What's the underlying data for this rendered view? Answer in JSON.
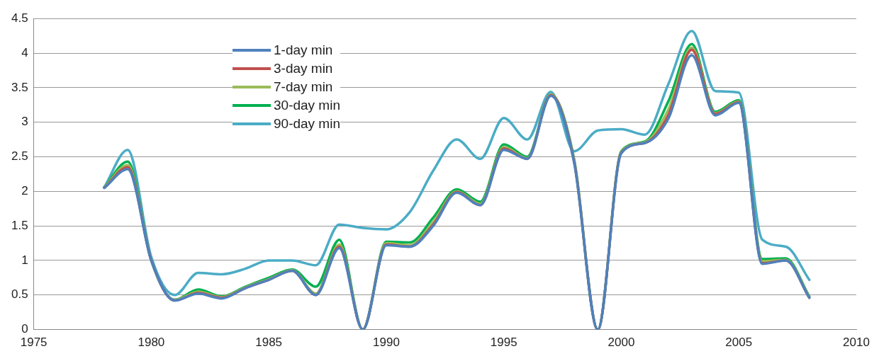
{
  "chart_data": {
    "type": "line",
    "x": [
      1978,
      1979,
      1980,
      1981,
      1982,
      1983,
      1984,
      1985,
      1986,
      1987,
      1988,
      1989,
      1990,
      1991,
      1992,
      1993,
      1994,
      1995,
      1996,
      1997,
      1998,
      1999,
      2000,
      2001,
      2002,
      2003,
      2004,
      2005,
      2006,
      2007,
      2008
    ],
    "series": [
      {
        "name": "1-day min",
        "color": "#4f81bd",
        "values": [
          2.05,
          2.32,
          1.0,
          0.42,
          0.52,
          0.45,
          0.6,
          0.72,
          0.85,
          0.5,
          1.18,
          0,
          1.22,
          1.2,
          1.5,
          1.98,
          1.8,
          2.6,
          2.47,
          3.38,
          2.4,
          0,
          2.55,
          2.7,
          3.05,
          3.97,
          3.1,
          3.28,
          0.95,
          1.0,
          0.46
        ]
      },
      {
        "name": "3-day min",
        "color": "#c0504d",
        "values": [
          2.05,
          2.35,
          1.0,
          0.42,
          0.53,
          0.46,
          0.6,
          0.72,
          0.85,
          0.5,
          1.2,
          0,
          1.23,
          1.2,
          1.52,
          1.99,
          1.8,
          2.62,
          2.47,
          3.39,
          2.42,
          0,
          2.56,
          2.7,
          3.1,
          4.05,
          3.12,
          3.29,
          0.96,
          1.0,
          0.46
        ]
      },
      {
        "name": "7-day min",
        "color": "#9bbb59",
        "values": [
          2.06,
          2.38,
          1.0,
          0.43,
          0.55,
          0.47,
          0.61,
          0.73,
          0.86,
          0.52,
          1.23,
          0,
          1.25,
          1.22,
          1.56,
          2.0,
          1.82,
          2.64,
          2.48,
          3.4,
          2.43,
          0,
          2.57,
          2.71,
          3.18,
          4.08,
          3.13,
          3.3,
          0.99,
          1.01,
          0.47
        ]
      },
      {
        "name": "30-day min",
        "color": "#00b050",
        "values": [
          2.06,
          2.43,
          1.0,
          0.43,
          0.58,
          0.48,
          0.62,
          0.75,
          0.87,
          0.62,
          1.3,
          0,
          1.27,
          1.26,
          1.62,
          2.03,
          1.85,
          2.68,
          2.5,
          3.4,
          2.45,
          0,
          2.58,
          2.72,
          3.3,
          4.13,
          3.15,
          3.32,
          1.02,
          1.03,
          0.48
        ]
      },
      {
        "name": "90-day min",
        "color": "#4bacc6",
        "values": [
          2.06,
          2.6,
          1.05,
          0.5,
          0.82,
          0.8,
          0.88,
          1.0,
          1.0,
          0.93,
          1.52,
          1.47,
          1.45,
          1.7,
          2.3,
          2.75,
          2.47,
          3.06,
          2.75,
          3.44,
          2.58,
          2.88,
          2.9,
          2.82,
          3.55,
          4.32,
          3.45,
          3.43,
          1.3,
          1.2,
          0.72
        ]
      }
    ],
    "xlim": [
      1975,
      2010
    ],
    "xticks": [
      1975,
      1980,
      1985,
      1990,
      1995,
      2000,
      2005,
      2010
    ],
    "ylim": [
      0,
      4.5
    ],
    "yticks": [
      0,
      0.5,
      1,
      1.5,
      2,
      2.5,
      3,
      3.5,
      4,
      4.5
    ],
    "grid": "y",
    "legend": "top left",
    "marker": "none",
    "line_style": "solid"
  }
}
